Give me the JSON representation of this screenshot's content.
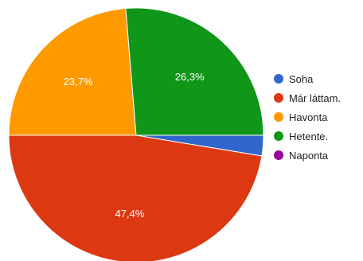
{
  "chart_data": {
    "type": "pie",
    "categories": [
      "Soha",
      "Már láttam.",
      "Havonta",
      "Hetente.",
      "Naponta"
    ],
    "values": [
      2.6,
      47.4,
      23.7,
      26.3,
      0
    ],
    "value_labels": [
      "",
      "47,4%",
      "23,7%",
      "26,3%",
      ""
    ],
    "colors": [
      "#3366cc",
      "#dc3912",
      "#ff9900",
      "#109618",
      "#990099"
    ],
    "legend_position": "right",
    "start": "3 o'clock",
    "direction": "clockwise"
  }
}
